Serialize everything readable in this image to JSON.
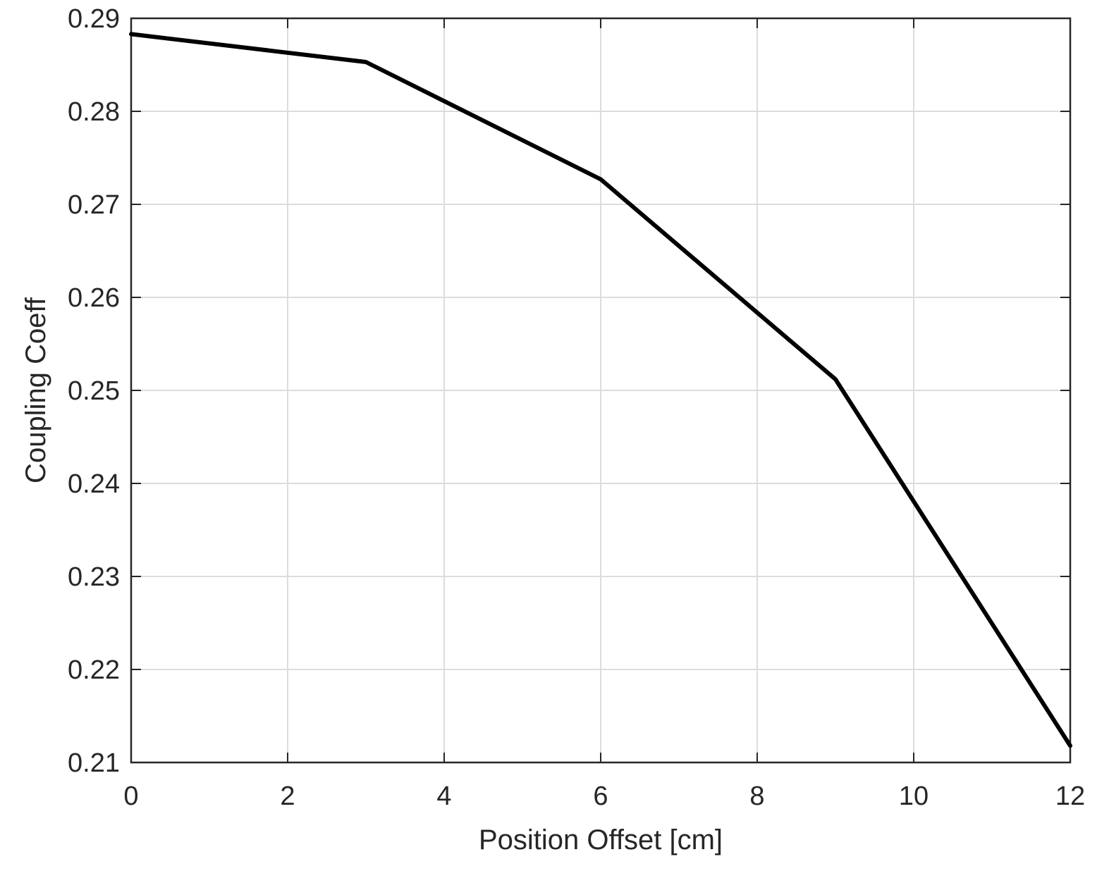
{
  "chart_data": {
    "type": "line",
    "title": "",
    "xlabel": "Position Offset [cm]",
    "ylabel": "Coupling Coeff",
    "xlim": [
      0,
      12
    ],
    "ylim": [
      0.21,
      0.29
    ],
    "xticks": [
      0,
      2,
      4,
      6,
      8,
      10,
      12
    ],
    "xtick_labels": [
      "0",
      "2",
      "4",
      "6",
      "8",
      "10",
      "12"
    ],
    "yticks": [
      0.21,
      0.22,
      0.23,
      0.24,
      0.25,
      0.26,
      0.27,
      0.28,
      0.29
    ],
    "ytick_labels": [
      "0.21",
      "0.22",
      "0.23",
      "0.24",
      "0.25",
      "0.26",
      "0.27",
      "0.28",
      "0.29"
    ],
    "grid": true,
    "series": [
      {
        "color": "#000000",
        "x": [
          0,
          3,
          6,
          9,
          12
        ],
        "y": [
          0.2883,
          0.2853,
          0.2727,
          0.2512,
          0.2118
        ]
      }
    ]
  }
}
